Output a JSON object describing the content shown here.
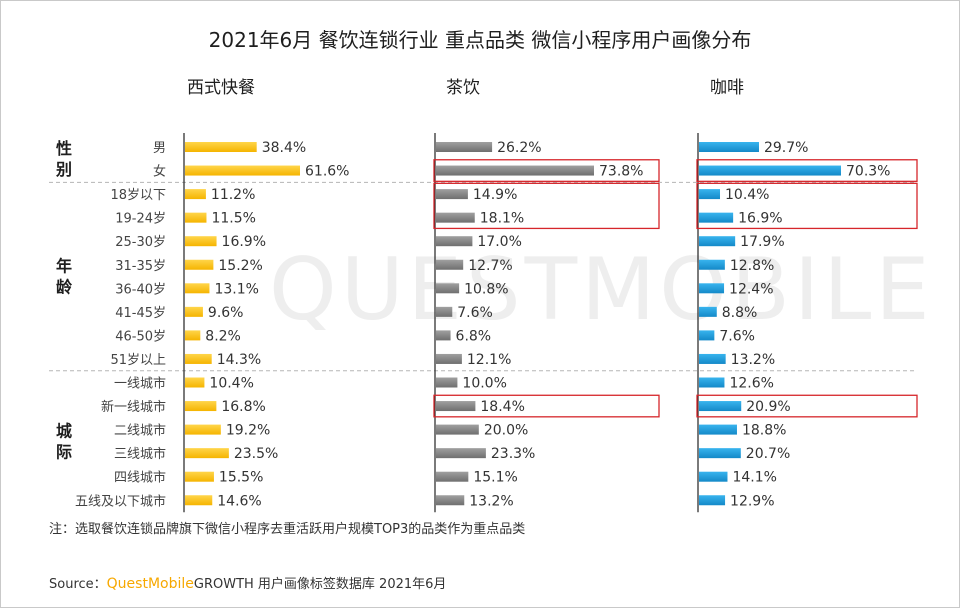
{
  "title": "2021年6月 餐饮连锁行业 重点品类 微信小程序用户画像分布",
  "columns": [
    "西式快餐",
    "茶饮",
    "咖啡"
  ],
  "groups": [
    {
      "label": "性\n别",
      "rows": [
        "男",
        "女"
      ]
    },
    {
      "label": "年\n龄",
      "rows": [
        "18岁以下",
        "19-24岁",
        "25-30岁",
        "31-35岁",
        "36-40岁",
        "41-45岁",
        "46-50岁",
        "51岁以上"
      ]
    },
    {
      "label": "城\n际",
      "rows": [
        "一线城市",
        "新一线城市",
        "二线城市",
        "三线城市",
        "四线城市",
        "五线及以下城市"
      ]
    }
  ],
  "colors": {
    "series_1": "#f9b800",
    "series_2": "#7f7f7f",
    "series_3": "#1a9ad6",
    "highlight": "#d6262b",
    "brand": "#f7a800"
  },
  "watermark": "QUESTMOBILE",
  "footnote": "注：选取餐饮连锁品牌旗下微信小程序去重活跃用户规模TOP3的品类作为重点品类",
  "source": {
    "prefix": "Source：",
    "brand": "QuestMobile",
    "text": "GROWTH 用户画像标签数据库 2021年6月"
  },
  "chart_data": {
    "type": "bar",
    "title": "2021年6月 餐饮连锁行业 重点品类 微信小程序用户画像分布",
    "categories": [
      "男",
      "女",
      "18岁以下",
      "19-24岁",
      "25-30岁",
      "31-35岁",
      "36-40岁",
      "41-45岁",
      "46-50岁",
      "51岁以上",
      "一线城市",
      "新一线城市",
      "二线城市",
      "三线城市",
      "四线城市",
      "五线及以下城市"
    ],
    "series": [
      {
        "name": "西式快餐",
        "values": [
          38.4,
          61.6,
          11.2,
          11.5,
          16.9,
          15.2,
          13.1,
          9.6,
          8.2,
          14.3,
          10.4,
          16.8,
          19.2,
          23.5,
          15.5,
          14.6
        ],
        "labels": [
          "38.4%",
          "61.6%",
          "11.2%",
          "11.5%",
          "16.9%",
          "15.2%",
          "13.1%",
          "9.6%",
          "8.2%",
          "14.3%",
          "10.4%",
          "16.8%",
          "19.2%",
          "23.5%",
          "15.5%",
          "14.6%"
        ],
        "highlighted": []
      },
      {
        "name": "茶饮",
        "values": [
          26.2,
          73.8,
          14.9,
          18.1,
          17.0,
          12.7,
          10.8,
          7.6,
          6.8,
          12.1,
          10.0,
          18.4,
          20.0,
          23.3,
          15.1,
          13.2
        ],
        "labels": [
          "26.2%",
          "73.8%",
          "14.9%",
          "18.1%",
          "17.0%",
          "12.7%",
          "10.8%",
          "7.6%",
          "6.8%",
          "12.1%",
          "10.0%",
          "18.4%",
          "20.0%",
          "23.3%",
          "15.1%",
          "13.2%"
        ],
        "highlighted": [
          [
            1,
            1
          ],
          [
            2,
            3
          ],
          [
            11,
            11
          ]
        ]
      },
      {
        "name": "咖啡",
        "values": [
          29.7,
          70.3,
          10.4,
          16.9,
          17.9,
          12.8,
          12.4,
          8.8,
          7.6,
          13.2,
          12.6,
          20.9,
          18.8,
          20.7,
          14.1,
          12.9
        ],
        "labels": [
          "29.7%",
          "70.3%",
          "10.4%",
          "16.9%",
          "17.9%",
          "12.8%",
          "12.4%",
          "8.8%",
          "7.6%",
          "13.2%",
          "12.6%",
          "20.9%",
          "18.8%",
          "20.7%",
          "14.1%",
          "12.9%"
        ],
        "highlighted": [
          [
            1,
            1
          ],
          [
            2,
            3
          ],
          [
            11,
            11
          ]
        ]
      }
    ],
    "orientation": "horizontal",
    "unit": "%",
    "grid": false,
    "legend": "none"
  }
}
